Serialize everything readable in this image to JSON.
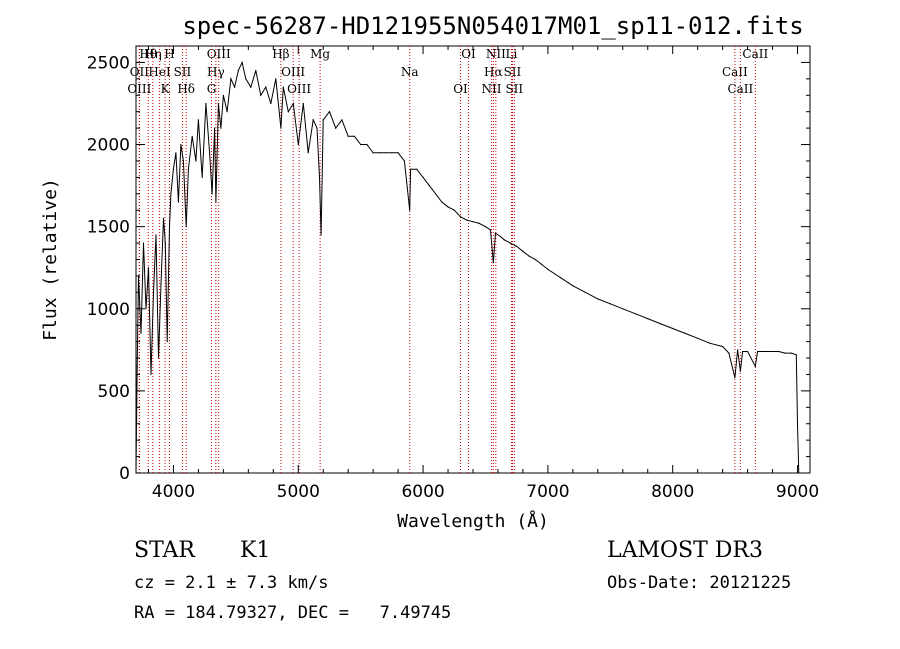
{
  "chart_data": {
    "type": "line",
    "title": "spec-56287-HD121955N054017M01_sp11-012.fits",
    "xlabel": "Wavelength (Å)",
    "ylabel": "Flux (relative)",
    "xlim": [
      3700,
      9100
    ],
    "ylim": [
      0,
      2600
    ],
    "xticks": [
      4000,
      5000,
      6000,
      7000,
      8000,
      9000
    ],
    "yticks": [
      0,
      500,
      1000,
      1500,
      2000,
      2500
    ],
    "grid": false,
    "series": [
      {
        "name": "flux",
        "x": [
          3700,
          3710,
          3720,
          3740,
          3760,
          3780,
          3800,
          3820,
          3840,
          3860,
          3880,
          3900,
          3920,
          3935,
          3950,
          3968,
          3980,
          4000,
          4020,
          4040,
          4060,
          4080,
          4102,
          4120,
          4150,
          4180,
          4200,
          4230,
          4260,
          4290,
          4310,
          4330,
          4340,
          4360,
          4380,
          4400,
          4430,
          4460,
          4490,
          4520,
          4550,
          4580,
          4620,
          4660,
          4700,
          4740,
          4780,
          4820,
          4861,
          4880,
          4920,
          4960,
          5000,
          5040,
          5080,
          5120,
          5150,
          5170,
          5183,
          5200,
          5250,
          5300,
          5350,
          5400,
          5450,
          5500,
          5550,
          5600,
          5650,
          5700,
          5750,
          5800,
          5850,
          5893,
          5900,
          5950,
          6000,
          6050,
          6100,
          6150,
          6200,
          6250,
          6300,
          6350,
          6400,
          6450,
          6500,
          6540,
          6563,
          6580,
          6620,
          6650,
          6700,
          6750,
          6800,
          6850,
          6900,
          6950,
          7000,
          7100,
          7200,
          7300,
          7400,
          7500,
          7600,
          7700,
          7800,
          7900,
          8000,
          8100,
          8200,
          8300,
          8400,
          8450,
          8498,
          8520,
          8542,
          8560,
          8600,
          8662,
          8680,
          8700,
          8750,
          8800,
          8850,
          8900,
          8950,
          8990,
          9000,
          9010
        ],
        "y": [
          0,
          650,
          1200,
          850,
          1400,
          1000,
          1250,
          600,
          1100,
          1450,
          700,
          1150,
          1550,
          1400,
          800,
          1500,
          1700,
          1850,
          1950,
          1650,
          2000,
          1900,
          1500,
          1850,
          2050,
          1900,
          2150,
          1800,
          2250,
          1950,
          1700,
          2100,
          1650,
          2250,
          2100,
          2300,
          2200,
          2400,
          2350,
          2450,
          2500,
          2400,
          2350,
          2450,
          2300,
          2350,
          2250,
          2400,
          2100,
          2350,
          2200,
          2250,
          2000,
          2250,
          1950,
          2150,
          2100,
          1800,
          1450,
          2150,
          2200,
          2100,
          2150,
          2050,
          2050,
          2000,
          2000,
          1950,
          1950,
          1950,
          1950,
          1950,
          1900,
          1600,
          1850,
          1850,
          1800,
          1750,
          1700,
          1650,
          1620,
          1600,
          1560,
          1540,
          1530,
          1520,
          1500,
          1480,
          1280,
          1460,
          1440,
          1420,
          1400,
          1380,
          1350,
          1320,
          1300,
          1270,
          1240,
          1190,
          1140,
          1100,
          1060,
          1030,
          1000,
          970,
          940,
          910,
          880,
          850,
          820,
          790,
          770,
          730,
          580,
          750,
          620,
          740,
          740,
          650,
          740,
          740,
          740,
          740,
          740,
          730,
          730,
          720,
          300,
          0
        ]
      }
    ],
    "lines": [
      {
        "label": "Hθ",
        "wavelength": 3798
      },
      {
        "label": "OII",
        "wavelength": 3727
      },
      {
        "label": "OIII",
        "wavelength": 3727
      },
      {
        "label": "Hη",
        "wavelength": 3835
      },
      {
        "label": "HeI",
        "wavelength": 3889
      },
      {
        "label": "K",
        "wavelength": 3933
      },
      {
        "label": "H",
        "wavelength": 3968
      },
      {
        "label": "SII",
        "wavelength": 4072
      },
      {
        "label": "Hδ",
        "wavelength": 4102
      },
      {
        "label": "OIII",
        "wavelength": 4363
      },
      {
        "label": "Hγ",
        "wavelength": 4340
      },
      {
        "label": "G",
        "wavelength": 4305
      },
      {
        "label": "Hβ",
        "wavelength": 4861
      },
      {
        "label": "OIII",
        "wavelength": 4959
      },
      {
        "label": "OIII",
        "wavelength": 5007
      },
      {
        "label": "Mg",
        "wavelength": 5175
      },
      {
        "label": "Na",
        "wavelength": 5893
      },
      {
        "label": "OI",
        "wavelength": 6300
      },
      {
        "label": "OI",
        "wavelength": 6364
      },
      {
        "label": "Hα",
        "wavelength": 6563
      },
      {
        "label": "NII",
        "wavelength": 6548
      },
      {
        "label": "NII",
        "wavelength": 6583
      },
      {
        "label": "SII",
        "wavelength": 6716
      },
      {
        "label": "SII",
        "wavelength": 6731
      },
      {
        "label": "Li",
        "wavelength": 6708
      },
      {
        "label": "CaII",
        "wavelength": 8498
      },
      {
        "label": "CaII",
        "wavelength": 8542
      },
      {
        "label": "CaII",
        "wavelength": 8662
      }
    ]
  },
  "info": {
    "class_label": "STAR",
    "subclass": "K1",
    "survey": "LAMOST DR3",
    "cz": "cz = 2.1 ± 7.3 km/s",
    "obs_date": "Obs-Date: 20121225",
    "coords": "RA = 184.79327, DEC =   7.49745"
  }
}
